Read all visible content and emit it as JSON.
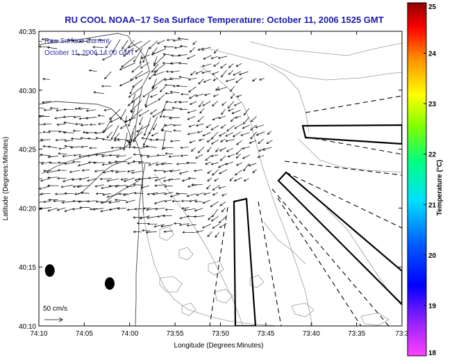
{
  "chart_data": {
    "type": "vector-field",
    "title": "RU COOL  NOAA−17  Sea Surface Temperature:  October 11, 2006 1525 GMT",
    "overlay_lines": [
      "Raw Surface Current",
      "October 11, 2006 14:00 GMT"
    ],
    "xlabel": "Longitude (Degrees:Minutes)",
    "ylabel": "Latitude (Degrees:Minutes)",
    "x_ticks": [
      "74:10",
      "74:05",
      "74:00",
      "73:55",
      "73:50",
      "73:45",
      "73:40",
      "73:35",
      "73:3"
    ],
    "y_ticks": [
      "40:10",
      "40:15",
      "40:20",
      "40:25",
      "40:30",
      "40:35"
    ],
    "xlim_minutes_west": [
      70,
      30
    ],
    "ylim_minutes_north": [
      10,
      35
    ],
    "scale_label": "50 cm/s",
    "colorbar": {
      "label": "Temperature (°C)",
      "ticks": [
        "18",
        "19",
        "20",
        "21",
        "22",
        "23",
        "24",
        "25"
      ],
      "range": [
        18,
        25
      ]
    },
    "buoys": [
      {
        "lon_min": 68.8,
        "lat_min": 14.7
      },
      {
        "lon_min": 62.2,
        "lat_min": 13.6
      }
    ]
  }
}
